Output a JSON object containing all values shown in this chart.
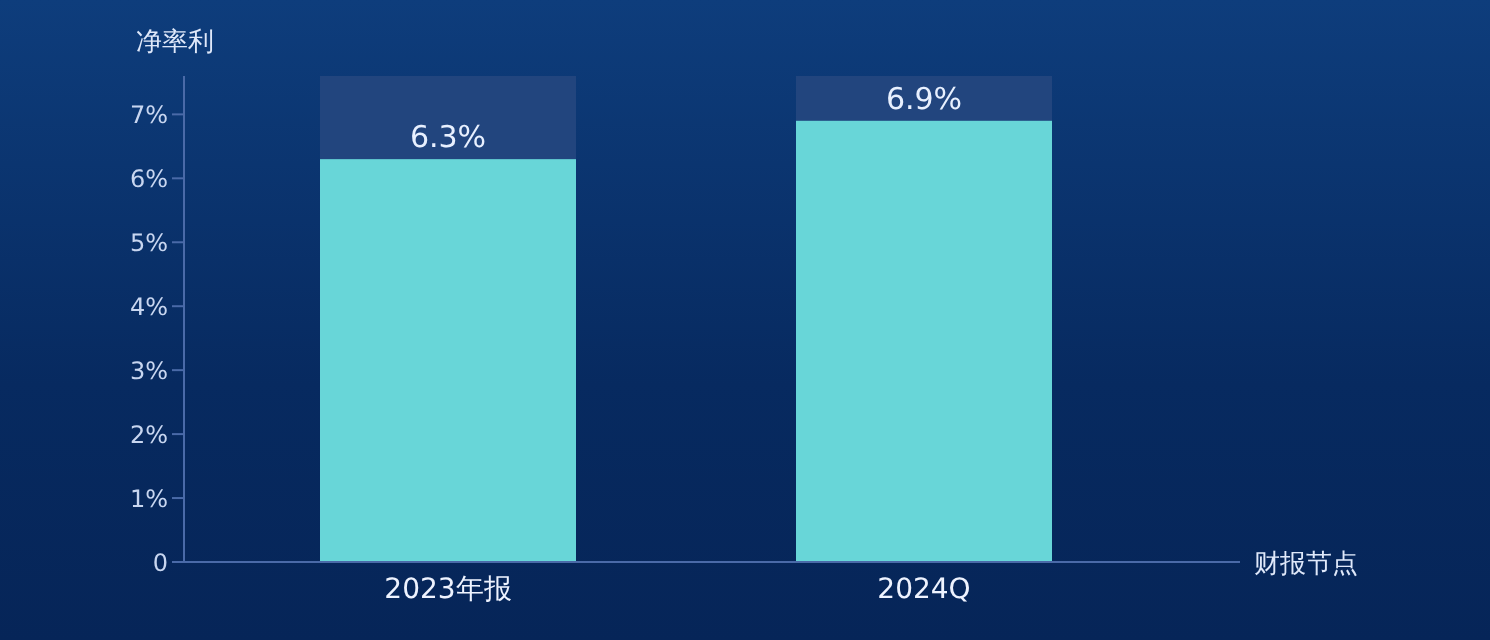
{
  "chart_data": {
    "type": "bar",
    "ylabel": "净率利",
    "xlabel": "财报节点",
    "categories": [
      "2023年报",
      "2024Q"
    ],
    "series": [
      {
        "color": "#68d6d8",
        "values": [
          6.3,
          6.9
        ],
        "value_labels": [
          "6.3%",
          "6.9%"
        ]
      }
    ],
    "ylim": [
      0,
      7.6
    ],
    "yticks": [
      0,
      {
        "value": 1,
        "label": "1%"
      },
      {
        "value": 2,
        "label": "2%"
      },
      {
        "value": 3,
        "label": "3%"
      },
      {
        "value": 4,
        "label": "4%"
      },
      {
        "value": 5,
        "label": "5%"
      },
      {
        "value": 6,
        "label": "6%"
      },
      {
        "value": 7,
        "label": "7%"
      }
    ],
    "grid": false,
    "legend": false
  }
}
